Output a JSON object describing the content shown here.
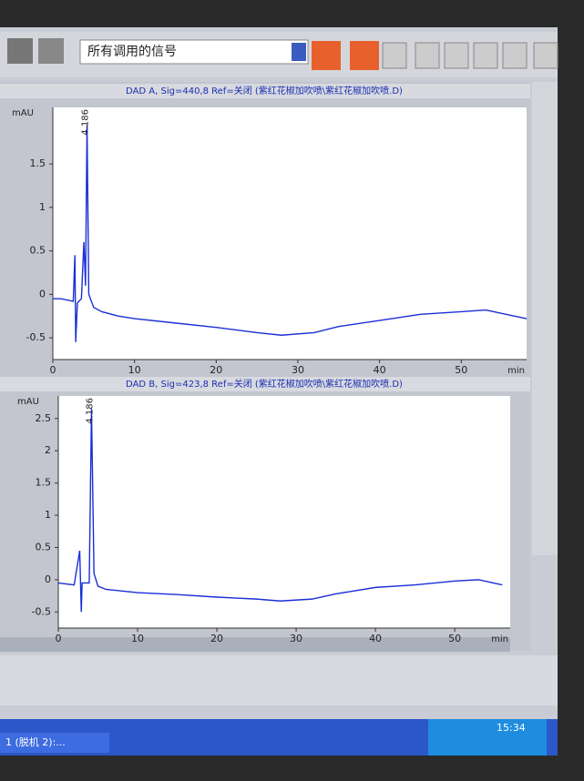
{
  "toolbar": {
    "signal_select": "所有调用的信号"
  },
  "taskbar": {
    "task": "1 (脱机 2):...",
    "clock": "15:34"
  },
  "chart_data": [
    {
      "type": "line",
      "title": "DAD A, Sig=440,8 Ref=关闭 (紫红花椒加吹喷\\紫红花椒加吹喷.D)",
      "y_label": "mAU",
      "x_label": "min",
      "annotations": [
        {
          "text": "4.186",
          "x": 4.186
        }
      ],
      "xlim": [
        0,
        58
      ],
      "xticks": [
        0,
        10,
        20,
        30,
        40,
        50
      ],
      "ylim": [
        -0.75,
        2.15
      ],
      "yticks": [
        -0.5,
        0,
        0.5,
        1,
        1.5
      ],
      "x": [
        0,
        1,
        2.5,
        2.7,
        2.8,
        3.0,
        3.5,
        3.8,
        4.0,
        4.186,
        4.4,
        5,
        6,
        8,
        10,
        15,
        20,
        25,
        28,
        32,
        35,
        40,
        45,
        50,
        53,
        56,
        58
      ],
      "series": [
        {
          "name": "DAD A",
          "color": "#1a2fd6",
          "values": [
            -0.05,
            -0.05,
            -0.08,
            0.45,
            -0.55,
            -0.1,
            -0.05,
            0.6,
            0.1,
            1.95,
            0.0,
            -0.15,
            -0.2,
            -0.25,
            -0.28,
            -0.33,
            -0.38,
            -0.44,
            -0.47,
            -0.44,
            -0.37,
            -0.3,
            -0.23,
            -0.2,
            -0.18,
            -0.24,
            -0.28
          ]
        }
      ]
    },
    {
      "type": "line",
      "title": "DAD B, Sig=423,8 Ref=关闭 (紫红花椒加吹喷\\紫红花椒加吹喷.D)",
      "y_label": "mAU",
      "x_label": "min",
      "annotations": [
        {
          "text": "4.186",
          "x": 4.186
        }
      ],
      "xlim": [
        0,
        57
      ],
      "xticks": [
        0,
        10,
        20,
        30,
        40,
        50
      ],
      "ylim": [
        -0.75,
        2.85
      ],
      "yticks": [
        -0.5,
        0,
        0.5,
        1,
        1.5,
        2,
        2.5
      ],
      "x": [
        0,
        2,
        2.7,
        2.9,
        3.0,
        3.9,
        4.186,
        4.5,
        5,
        6,
        10,
        15,
        20,
        25,
        28,
        32,
        35,
        40,
        45,
        50,
        53,
        56
      ],
      "series": [
        {
          "name": "DAD B",
          "color": "#1a2fd6",
          "values": [
            -0.05,
            -0.08,
            0.45,
            -0.5,
            -0.05,
            -0.05,
            2.65,
            0.1,
            -0.1,
            -0.15,
            -0.2,
            -0.23,
            -0.27,
            -0.3,
            -0.33,
            -0.3,
            -0.22,
            -0.12,
            -0.08,
            -0.02,
            0.0,
            -0.08
          ]
        }
      ]
    }
  ]
}
